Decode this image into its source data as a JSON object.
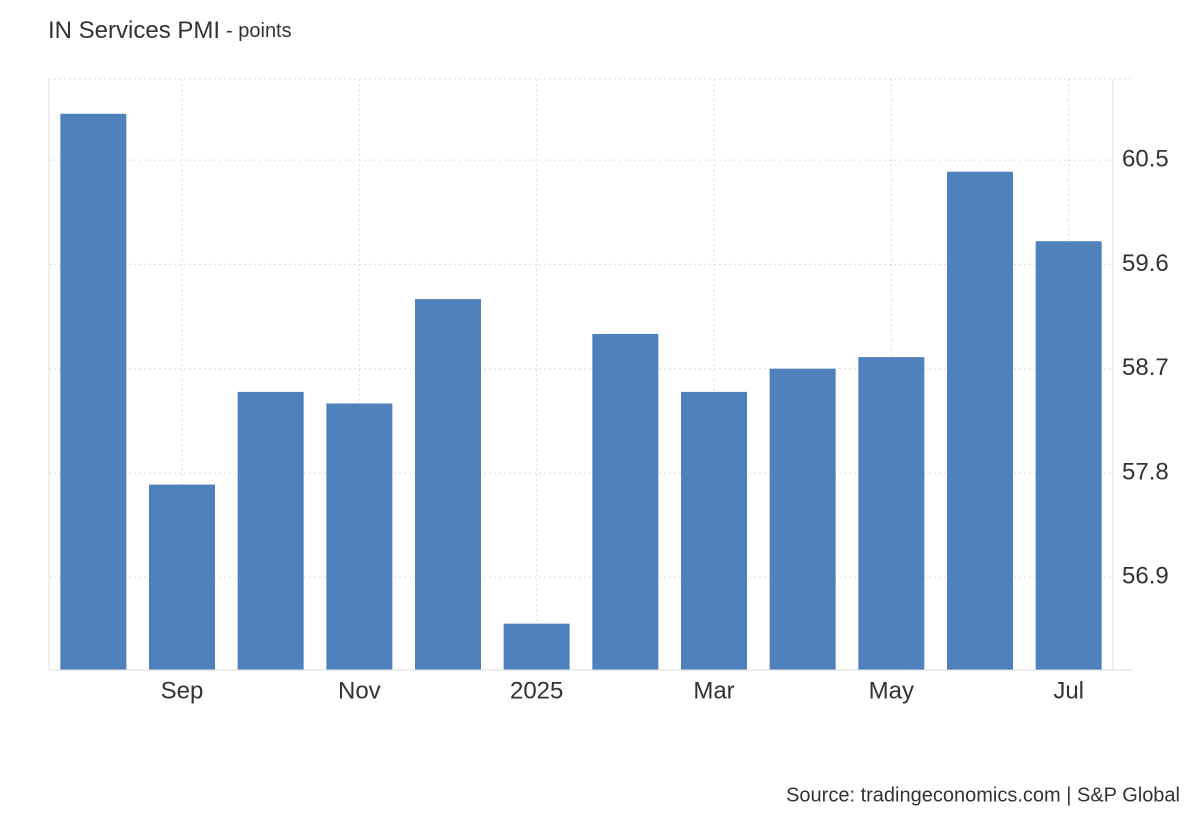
{
  "chart_data": {
    "type": "bar",
    "title": "IN Services PMI",
    "subtitle": "- points",
    "source": "Source: tradingeconomics.com | S&P Global",
    "categories": [
      null,
      "Sep",
      null,
      "Nov",
      null,
      "2025",
      null,
      "Mar",
      null,
      "May",
      null,
      "Jul"
    ],
    "values": [
      60.9,
      57.7,
      58.5,
      58.4,
      59.3,
      56.5,
      59.0,
      58.5,
      58.7,
      58.8,
      60.4,
      59.8
    ],
    "color": "#4f81bd",
    "ylim": [
      56.1,
      61.2
    ],
    "yticks": [
      56.9,
      57.8,
      58.7,
      59.6,
      60.5
    ],
    "grid": true,
    "y_axis_side": "right"
  }
}
